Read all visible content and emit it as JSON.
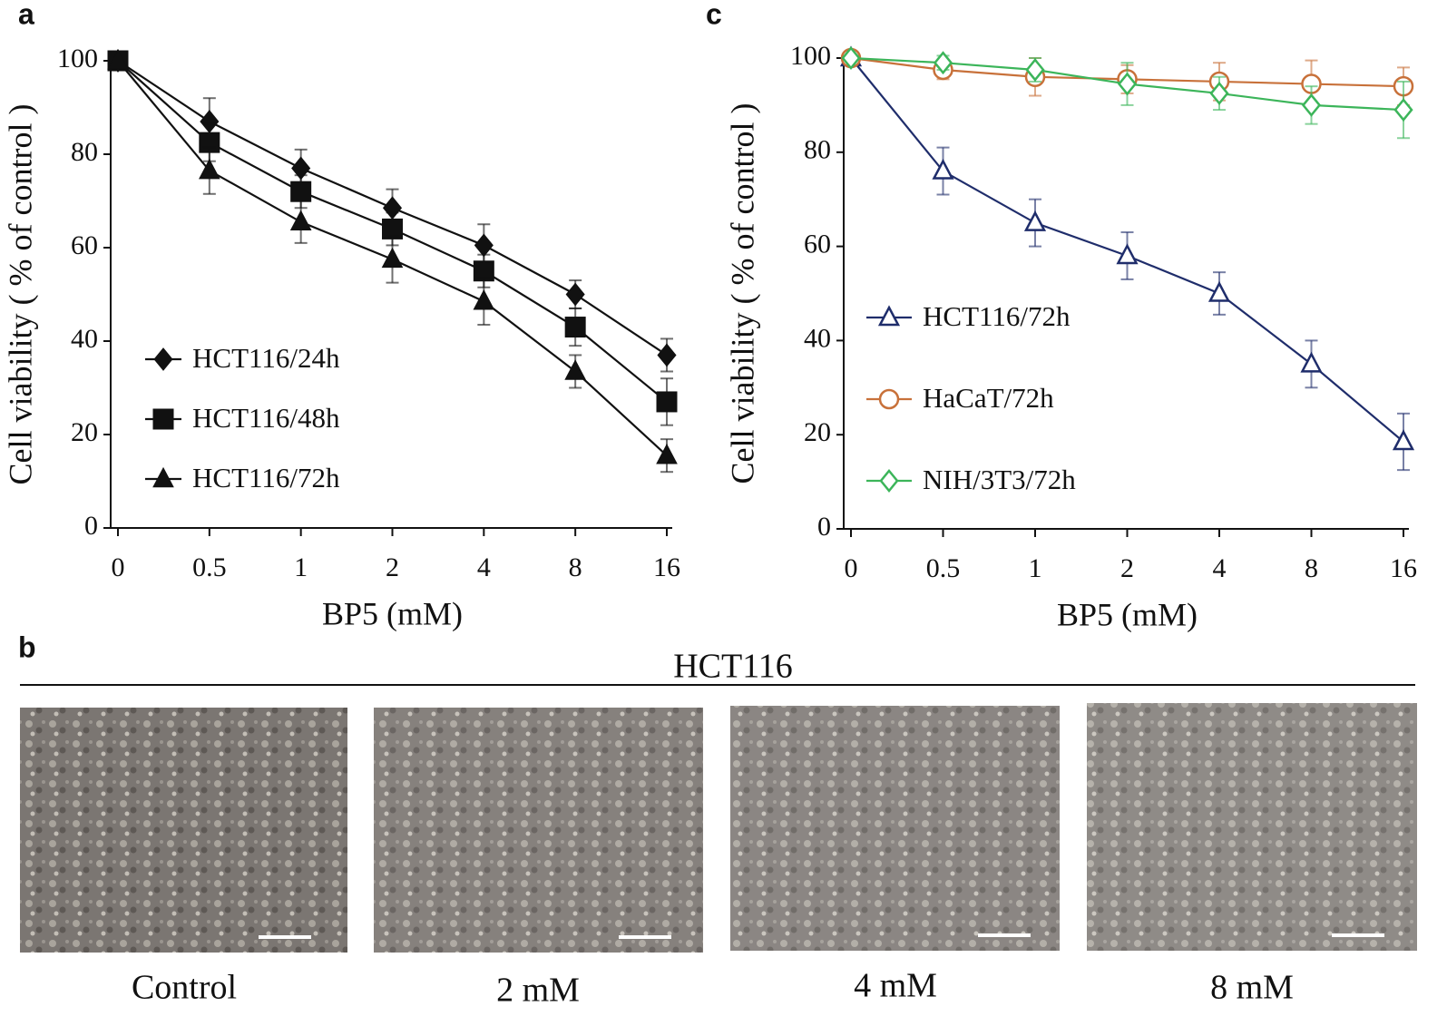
{
  "chart_data": [
    {
      "type": "line",
      "label": "a",
      "xlabel": "BP5 (mM)",
      "ylabel": "Cell viability ( % of control )",
      "categories": [
        "0",
        "0.5",
        "1",
        "2",
        "4",
        "8",
        "16"
      ],
      "ylim": [
        0,
        100
      ],
      "yticks": [
        0,
        20,
        40,
        60,
        80,
        100
      ],
      "grid": false,
      "legend": "lower left",
      "series": [
        {
          "name": "HCT116/24h",
          "color": "#111111",
          "marker": "diamond",
          "filled": true,
          "values": [
            100,
            87,
            77,
            68.5,
            60.5,
            50,
            37
          ],
          "errors": [
            0,
            5,
            4,
            4,
            4.5,
            3,
            3.5
          ]
        },
        {
          "name": "HCT116/48h",
          "color": "#111111",
          "marker": "square",
          "filled": true,
          "values": [
            100,
            82.5,
            72,
            64,
            55,
            43,
            27
          ],
          "errors": [
            0,
            4,
            3.5,
            3.5,
            3.5,
            4,
            5
          ]
        },
        {
          "name": "HCT116/72h",
          "color": "#111111",
          "marker": "triangle",
          "filled": true,
          "values": [
            100,
            76.5,
            65.5,
            57.5,
            48.5,
            33.5,
            15.5
          ],
          "errors": [
            0,
            5,
            4.5,
            5,
            5,
            3.5,
            3.5
          ]
        }
      ]
    },
    {
      "type": "line",
      "label": "c",
      "xlabel": "BP5 (mM)",
      "ylabel": "Cell viability ( % of control )",
      "categories": [
        "0",
        "0.5",
        "1",
        "2",
        "4",
        "8",
        "16"
      ],
      "ylim": [
        0,
        100
      ],
      "yticks": [
        0,
        20,
        40,
        60,
        80,
        100
      ],
      "grid": false,
      "legend": "center left",
      "series": [
        {
          "name": "HCT116/72h",
          "color": "#1f2d6b",
          "marker": "triangle",
          "filled": false,
          "values": [
            100,
            76,
            65,
            58,
            50,
            35,
            18.5
          ],
          "errors": [
            0,
            5,
            5,
            5,
            4.5,
            5,
            6
          ]
        },
        {
          "name": "HaCaT/72h",
          "color": "#c8713a",
          "marker": "circle",
          "filled": false,
          "values": [
            100,
            97.5,
            96,
            95.5,
            95,
            94.5,
            94
          ],
          "errors": [
            0,
            2,
            4,
            3,
            4,
            5,
            4
          ]
        },
        {
          "name": "NIH/3T3/72h",
          "color": "#3cb55a",
          "marker": "diamond",
          "filled": false,
          "values": [
            100,
            99,
            97.5,
            94.5,
            92.5,
            90,
            89
          ],
          "errors": [
            0,
            1.5,
            2.5,
            4.5,
            3.5,
            4,
            6
          ]
        }
      ]
    }
  ],
  "panel_b": {
    "label": "b",
    "title": "HCT116",
    "images": [
      "Control",
      "2 mM",
      "4 mM",
      "8 mM"
    ]
  }
}
